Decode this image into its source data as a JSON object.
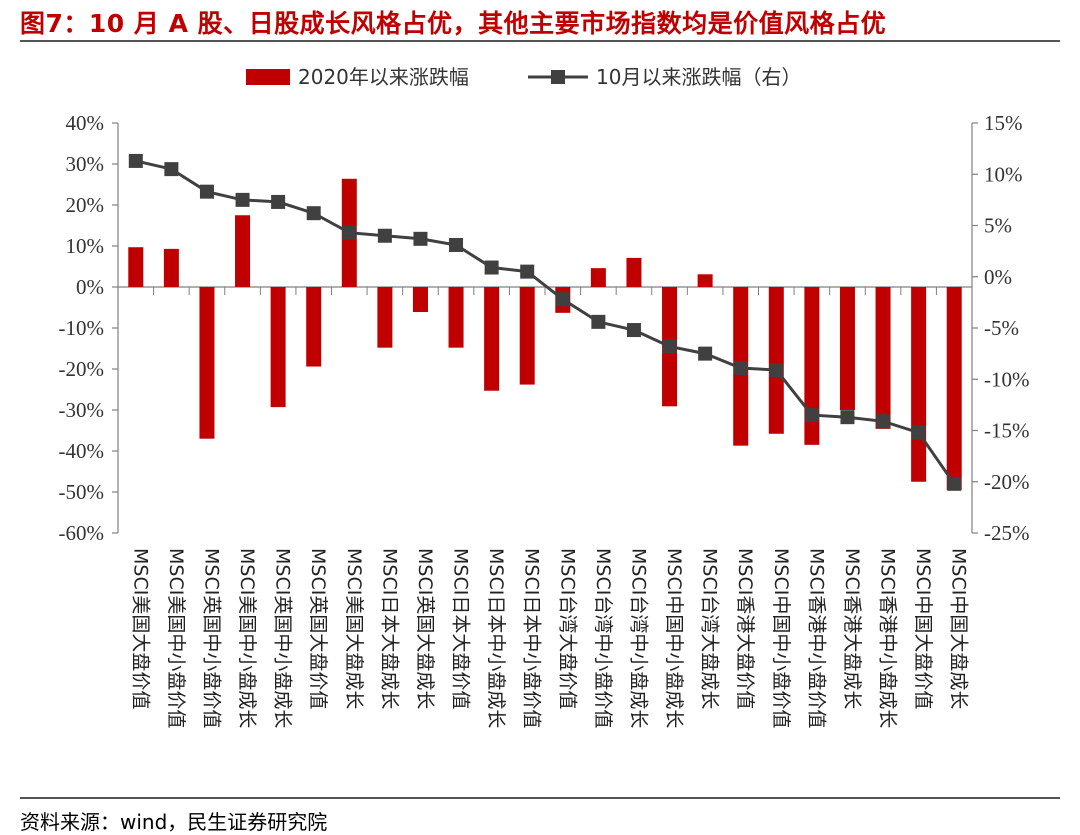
{
  "title": "图7：10 月 A 股、日股成长风格占优，其他主要市场指数均是价值风格占优",
  "source": "资料来源：wind，民生证券研究院",
  "chart_data": {
    "type": "bar+line",
    "categories": [
      "MSCI美国大盘价值",
      "MSCI美国中小盘价值",
      "MSCI英国中小盘价值",
      "MSCI美国中小盘成长",
      "MSCI英国中小盘成长",
      "MSCI英国大盘价值",
      "MSCI美国大盘成长",
      "MSCI日本大盘成长",
      "MSCI英国大盘成长",
      "MSCI日本大盘价值",
      "MSCI日本中小盘成长",
      "MSCI日本中小盘价值",
      "MSCI台湾大盘价值",
      "MSCI台湾中小盘价值",
      "MSCI台湾中小盘成长",
      "MSCI中国中小盘成长",
      "MSCI台湾大盘成长",
      "MSCI香港大盘价值",
      "MSCI中国中小盘价值",
      "MSCI香港中小盘价值",
      "MSCI香港大盘成长",
      "MSCI香港中小盘成长",
      "MSCI中国大盘价值",
      "MSCI中国大盘成长"
    ],
    "series": [
      {
        "name": "2020年以来涨跌幅",
        "type": "bar",
        "axis": "left",
        "color": "#c00000",
        "values": [
          9.7,
          9.3,
          -37.0,
          17.5,
          -29.3,
          -19.4,
          26.4,
          -14.8,
          -6.1,
          -14.8,
          -25.3,
          -23.8,
          -6.3,
          4.6,
          7.1,
          -29.1,
          3.1,
          -38.7,
          -35.8,
          -38.5,
          -30.0,
          -34.6,
          -47.5,
          -49.5
        ]
      },
      {
        "name": "10月以来涨跌幅（右）",
        "type": "line",
        "axis": "right",
        "color": "#404040",
        "values": [
          11.3,
          10.5,
          8.3,
          7.5,
          7.3,
          6.2,
          4.3,
          4.0,
          3.7,
          3.1,
          0.9,
          0.5,
          -2.2,
          -4.4,
          -5.2,
          -6.8,
          -7.5,
          -8.9,
          -9.1,
          -13.5,
          -13.7,
          -14.1,
          -15.2,
          -20.2
        ]
      }
    ],
    "y_left": {
      "min": -60,
      "max": 40,
      "step": 10,
      "ticks": [
        "40%",
        "30%",
        "20%",
        "10%",
        "0%",
        "-10%",
        "-20%",
        "-30%",
        "-40%",
        "-50%",
        "-60%"
      ]
    },
    "y_right": {
      "min": -25,
      "max": 15,
      "step": 5,
      "ticks": [
        "15%",
        "10%",
        "5%",
        "0%",
        "-5%",
        "-10%",
        "-15%",
        "-20%",
        "-25%"
      ]
    },
    "legend_placement": "top-center",
    "grid": false
  }
}
